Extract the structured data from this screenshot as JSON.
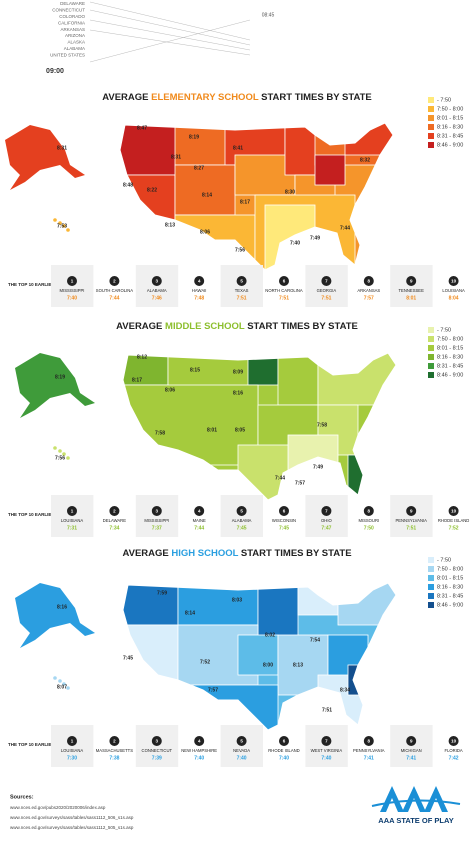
{
  "header": {
    "states": [
      "DELAWARE",
      "CONNECTICUT",
      "COLORADO",
      "CALIFORNIA",
      "ARKANSAS",
      "ARIZONA",
      "ALASKA",
      "ALABAMA",
      "UNITED STATES"
    ],
    "time_left": "09:00",
    "time_right": "08:45"
  },
  "sections": [
    {
      "title_pre": "AVERAGE ",
      "title_highlight": "ELEMENTARY SCHOOL",
      "title_post": " START TIMES BY STATE",
      "highlight_color": "#f08a1c",
      "legend": [
        {
          "label": "- 7:50",
          "color": "#ffe97a"
        },
        {
          "label": "7:50 - 8:00",
          "color": "#fbb735"
        },
        {
          "label": "8:01 - 8:15",
          "color": "#f5952b"
        },
        {
          "label": "8:16 - 8:30",
          "color": "#ee6b23"
        },
        {
          "label": "8:31 - 8:45",
          "color": "#e4401f"
        },
        {
          "label": "8:46 - 9:00",
          "color": "#c41f1f"
        }
      ],
      "map_labels": [
        "8:47",
        "8:19",
        "8:41",
        "8:31",
        "8:27",
        "8:48",
        "8:22",
        "8:17",
        "8:14",
        "8:13",
        "8:06",
        "7:56",
        "7:40",
        "7:49",
        "7:44",
        "8:30",
        "8:32",
        "8:31",
        "7:53"
      ],
      "top10_heading": "THE TOP 10 EARLIEST START TIMES",
      "top10": [
        {
          "rank": "1",
          "state": "MISSISSIPPI",
          "time": "7:40"
        },
        {
          "rank": "2",
          "state": "SOUTH CAROLINA",
          "time": "7:44"
        },
        {
          "rank": "3",
          "state": "ALABAMA",
          "time": "7:46"
        },
        {
          "rank": "4",
          "state": "HAWAII",
          "time": "7:48"
        },
        {
          "rank": "5",
          "state": "TEXAS",
          "time": "7:51"
        },
        {
          "rank": "6",
          "state": "NORTH CAROLINA",
          "time": "7:51"
        },
        {
          "rank": "7",
          "state": "GEORGIA",
          "time": "7:51"
        },
        {
          "rank": "8",
          "state": "ARKANSAS",
          "time": "7:57"
        },
        {
          "rank": "9",
          "state": "TENNESSEE",
          "time": "8:01"
        },
        {
          "rank": "10",
          "state": "LOUISIANA",
          "time": "8:04"
        }
      ]
    },
    {
      "title_pre": "AVERAGE ",
      "title_highlight": "MIDDLE SCHOOL",
      "title_post": " START TIMES BY STATE",
      "highlight_color": "#8dbf2e",
      "legend": [
        {
          "label": "- 7:50",
          "color": "#e8f2ae"
        },
        {
          "label": "7:50 - 8:00",
          "color": "#c9e16c"
        },
        {
          "label": "8:01 - 8:15",
          "color": "#a5cb3d"
        },
        {
          "label": "8:16 - 8:30",
          "color": "#7fb52f"
        },
        {
          "label": "8:31 - 8:45",
          "color": "#3f9b3a"
        },
        {
          "label": "8:46 - 9:00",
          "color": "#1f6e2f"
        }
      ],
      "map_labels": [
        "8:12",
        "8:17",
        "8:06",
        "8:15",
        "8:09",
        "8:16",
        "8:01",
        "8:05",
        "7:58",
        "7:44",
        "7:49",
        "7:57",
        "7:58",
        "8:19",
        "7:56"
      ],
      "top10_heading": "THE TOP 10 EARLIEST START TIMES",
      "top10": [
        {
          "rank": "1",
          "state": "LOUISIANA",
          "time": "7:31"
        },
        {
          "rank": "2",
          "state": "DELAWARE",
          "time": "7:34"
        },
        {
          "rank": "3",
          "state": "MISSISSIPPI",
          "time": "7:37"
        },
        {
          "rank": "4",
          "state": "MAINE",
          "time": "7:44"
        },
        {
          "rank": "5",
          "state": "ALABAMA",
          "time": "7:45"
        },
        {
          "rank": "6",
          "state": "WISCONSIN",
          "time": "7:45"
        },
        {
          "rank": "7",
          "state": "OHIO",
          "time": "7:47"
        },
        {
          "rank": "8",
          "state": "MISSOURI",
          "time": "7:50"
        },
        {
          "rank": "9",
          "state": "PENNSYLVANIA",
          "time": "7:51"
        },
        {
          "rank": "10",
          "state": "RHODE ISLAND",
          "time": "7:52"
        }
      ]
    },
    {
      "title_pre": "AVERAGE ",
      "title_highlight": "HIGH SCHOOL",
      "title_post": " START TIMES BY STATE",
      "highlight_color": "#2a9fe0",
      "legend": [
        {
          "label": "- 7:50",
          "color": "#d9eefb"
        },
        {
          "label": "7:50 - 8:00",
          "color": "#a6d7f2"
        },
        {
          "label": "8:01 - 8:15",
          "color": "#5dbce8"
        },
        {
          "label": "8:16 - 8:30",
          "color": "#2b9ee0"
        },
        {
          "label": "8:31 - 8:45",
          "color": "#1a76c0"
        },
        {
          "label": "8:46 - 9:00",
          "color": "#134f8e"
        }
      ],
      "map_labels": [
        "8:16",
        "8:07",
        "7:59",
        "8:14",
        "8:03",
        "7:45",
        "7:52",
        "7:57",
        "8:02",
        "8:00",
        "8:13",
        "8:34",
        "7:51",
        "7:54"
      ],
      "top10_heading": "THE TOP 10 EARLIEST START TIMES",
      "top10": [
        {
          "rank": "1",
          "state": "LOUISIANA",
          "time": "7:30"
        },
        {
          "rank": "2",
          "state": "MASSACHUSETTS",
          "time": "7:38"
        },
        {
          "rank": "3",
          "state": "CONNECTICUT",
          "time": "7:39"
        },
        {
          "rank": "4",
          "state": "NEW HAMPSHIRE",
          "time": "7:40"
        },
        {
          "rank": "5",
          "state": "NEVADA",
          "time": "7:40"
        },
        {
          "rank": "6",
          "state": "RHODE ISLAND",
          "time": "7:40"
        },
        {
          "rank": "7",
          "state": "WEST VIRGINIA",
          "time": "7:40"
        },
        {
          "rank": "8",
          "state": "PENNSYLVANIA",
          "time": "7:41"
        },
        {
          "rank": "9",
          "state": "MICHIGAN",
          "time": "7:41"
        },
        {
          "rank": "10",
          "state": "FLORIDA",
          "time": "7:42"
        }
      ]
    }
  ],
  "sources": {
    "heading": "Sources:",
    "links": [
      "www.nces.ed.gov/pubs2020/2020006/index.asp",
      "www.nces.ed.gov/surveys/sass/tables/sass1112_506_s1s.asp",
      "www.nces.ed.gov/surveys/sass/tables/sass1112_505_s1s.asp"
    ]
  },
  "logo": "AAA STATE OF PLAY"
}
